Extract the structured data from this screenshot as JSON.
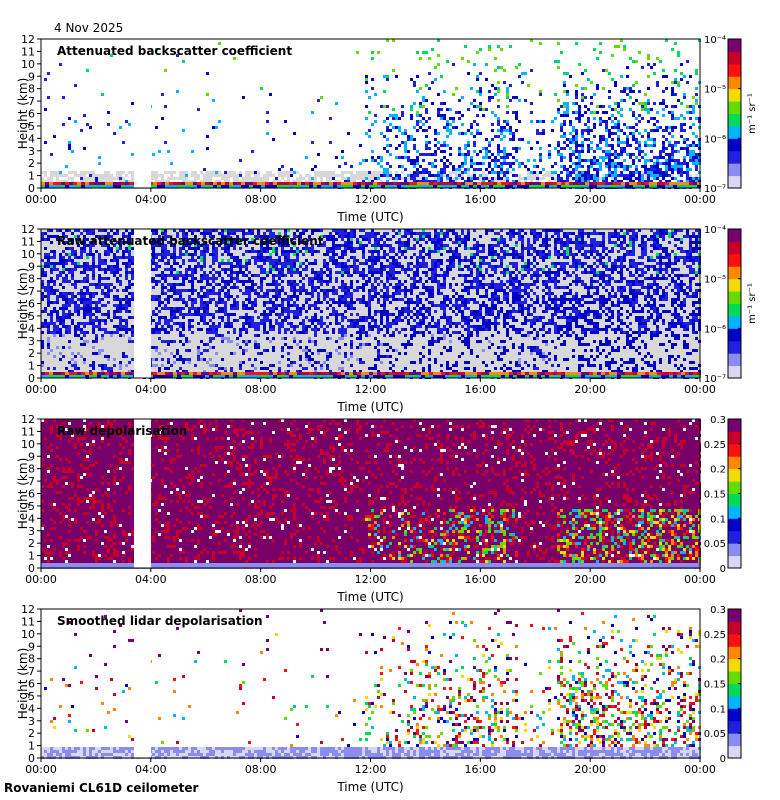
{
  "date": "4 Nov 2025",
  "footer": "Rovaniemi CL61D ceilometer",
  "chart_data": [
    {
      "type": "heatmap",
      "title": "Attenuated backscatter coefficient",
      "xlabel": "Time (UTC)",
      "ylabel": "Height (km)",
      "xticks": [
        "00:00",
        "04:00",
        "08:00",
        "12:00",
        "16:00",
        "20:00",
        "00:00"
      ],
      "yticks": [
        "0",
        "1",
        "2",
        "3",
        "4",
        "5",
        "6",
        "7",
        "8",
        "9",
        "10",
        "11",
        "12"
      ],
      "ylim": [
        0,
        12
      ],
      "colorbar": {
        "scale": "log",
        "unit": "m⁻¹ sr⁻¹",
        "ticks": [
          "10⁻⁷",
          "10⁻⁶",
          "10⁻⁵",
          "10⁻⁴"
        ],
        "range": [
          1e-07,
          0.0001
        ]
      },
      "pattern": "sparse"
    },
    {
      "type": "heatmap",
      "title": "Raw attenuated backscatter coefficient",
      "xlabel": "Time (UTC)",
      "ylabel": "Height (km)",
      "xticks": [
        "00:00",
        "04:00",
        "08:00",
        "12:00",
        "16:00",
        "20:00",
        "00:00"
      ],
      "yticks": [
        "0",
        "1",
        "2",
        "3",
        "4",
        "5",
        "6",
        "7",
        "8",
        "9",
        "10",
        "11",
        "12"
      ],
      "ylim": [
        0,
        12
      ],
      "colorbar": {
        "scale": "log",
        "unit": "m⁻¹ sr⁻¹",
        "ticks": [
          "10⁻⁷",
          "10⁻⁶",
          "10⁻⁵",
          "10⁻⁴"
        ],
        "range": [
          1e-07,
          0.0001
        ]
      },
      "pattern": "dense-blue"
    },
    {
      "type": "heatmap",
      "title": "Raw depolarisation",
      "xlabel": "Time (UTC)",
      "ylabel": "Height (km)",
      "xticks": [
        "00:00",
        "04:00",
        "08:00",
        "12:00",
        "16:00",
        "20:00",
        "00:00"
      ],
      "yticks": [
        "0",
        "1",
        "2",
        "3",
        "4",
        "5",
        "6",
        "7",
        "8",
        "9",
        "10",
        "11",
        "12"
      ],
      "ylim": [
        0,
        12
      ],
      "colorbar": {
        "scale": "linear",
        "unit": "",
        "ticks": [
          "0",
          "0.05",
          "0.1",
          "0.15",
          "0.2",
          "0.25",
          "0.3"
        ],
        "range": [
          0,
          0.3
        ]
      },
      "pattern": "dense-purple"
    },
    {
      "type": "heatmap",
      "title": "Smoothed lidar depolarisation",
      "xlabel": "Time (UTC)",
      "ylabel": "Height (km)",
      "xticks": [
        "00:00",
        "04:00",
        "08:00",
        "12:00",
        "16:00",
        "20:00",
        "00:00"
      ],
      "yticks": [
        "0",
        "1",
        "2",
        "3",
        "4",
        "5",
        "6",
        "7",
        "8",
        "9",
        "10",
        "11",
        "12"
      ],
      "ylim": [
        0,
        12
      ],
      "colorbar": {
        "scale": "linear",
        "unit": "",
        "ticks": [
          "0",
          "0.05",
          "0.1",
          "0.15",
          "0.2",
          "0.25",
          "0.3"
        ],
        "range": [
          0,
          0.3
        ]
      },
      "pattern": "sparse-depol"
    }
  ],
  "colors": {
    "colormap": [
      "#d8d8f4",
      "#8c8cf0",
      "#2020e0",
      "#0000c8",
      "#00b4ff",
      "#00dc5a",
      "#64dc00",
      "#f0dc00",
      "#ff8800",
      "#ff1010",
      "#c80028",
      "#78006e"
    ],
    "gap": "#ffffff",
    "grey": "#d8d8d8"
  }
}
